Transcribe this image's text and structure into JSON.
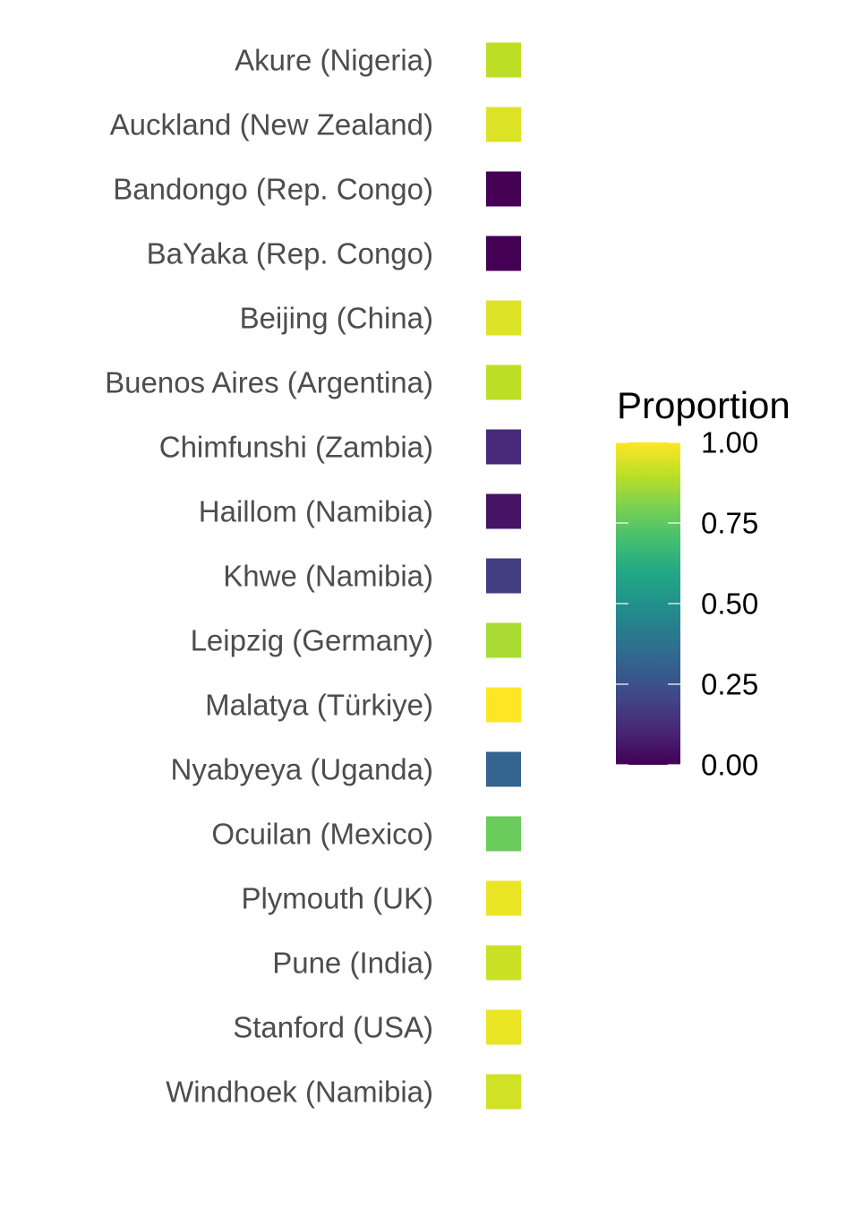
{
  "chart_data": {
    "type": "heatmap",
    "categories": [
      "Akure (Nigeria)",
      "Auckland (New Zealand)",
      "Bandongo (Rep. Congo)",
      "BaYaka (Rep. Congo)",
      "Beijing (China)",
      "Buenos Aires (Argentina)",
      "Chimfunshi (Zambia)",
      "Haillom (Namibia)",
      "Khwe (Namibia)",
      "Leipzig (Germany)",
      "Malatya (Türkiye)",
      "Nyabyeya (Uganda)",
      "Ocuilan (Mexico)",
      "Plymouth (UK)",
      "Pune (India)",
      "Stanford (USA)",
      "Windhoek (Namibia)"
    ],
    "values": [
      0.9,
      0.95,
      0.0,
      0.0,
      0.95,
      0.9,
      0.12,
      0.05,
      0.18,
      0.87,
      1.0,
      0.32,
      0.77,
      0.97,
      0.92,
      0.97,
      0.93
    ],
    "legend": {
      "title": "Proportion",
      "ticks": [
        "0.00",
        "0.25",
        "0.50",
        "0.75",
        "1.00"
      ],
      "tick_values": [
        0,
        0.25,
        0.5,
        0.75,
        1.0
      ],
      "range": [
        0,
        1
      ],
      "placement": "right",
      "colormap": "viridis"
    },
    "colors": {
      "label_text": "#4d4d4d",
      "legend_text": "#000000"
    }
  }
}
